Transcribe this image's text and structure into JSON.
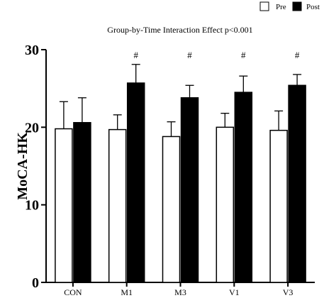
{
  "chart_data": {
    "type": "bar",
    "title": "Group-by-Time Interaction Effect p<0.001",
    "xlabel": "",
    "ylabel": "MoCA-HK",
    "ylim": [
      0,
      30
    ],
    "yticks": [
      0,
      10,
      20,
      30
    ],
    "grid": false,
    "legend_position": "top-right",
    "categories": [
      "CON",
      "M1",
      "M3",
      "V1",
      "V3"
    ],
    "series": [
      {
        "name": "Pre",
        "color": "#ffffff",
        "values": [
          19.8,
          19.7,
          18.8,
          20.0,
          19.6
        ],
        "errors": [
          3.5,
          1.9,
          1.9,
          1.8,
          2.5
        ]
      },
      {
        "name": "Post",
        "color": "#000000",
        "values": [
          20.6,
          25.7,
          23.8,
          24.5,
          25.4
        ],
        "errors": [
          3.2,
          2.4,
          1.6,
          2.1,
          1.4
        ]
      }
    ],
    "annotations": [
      "",
      "#",
      "#",
      "#",
      "#"
    ]
  }
}
